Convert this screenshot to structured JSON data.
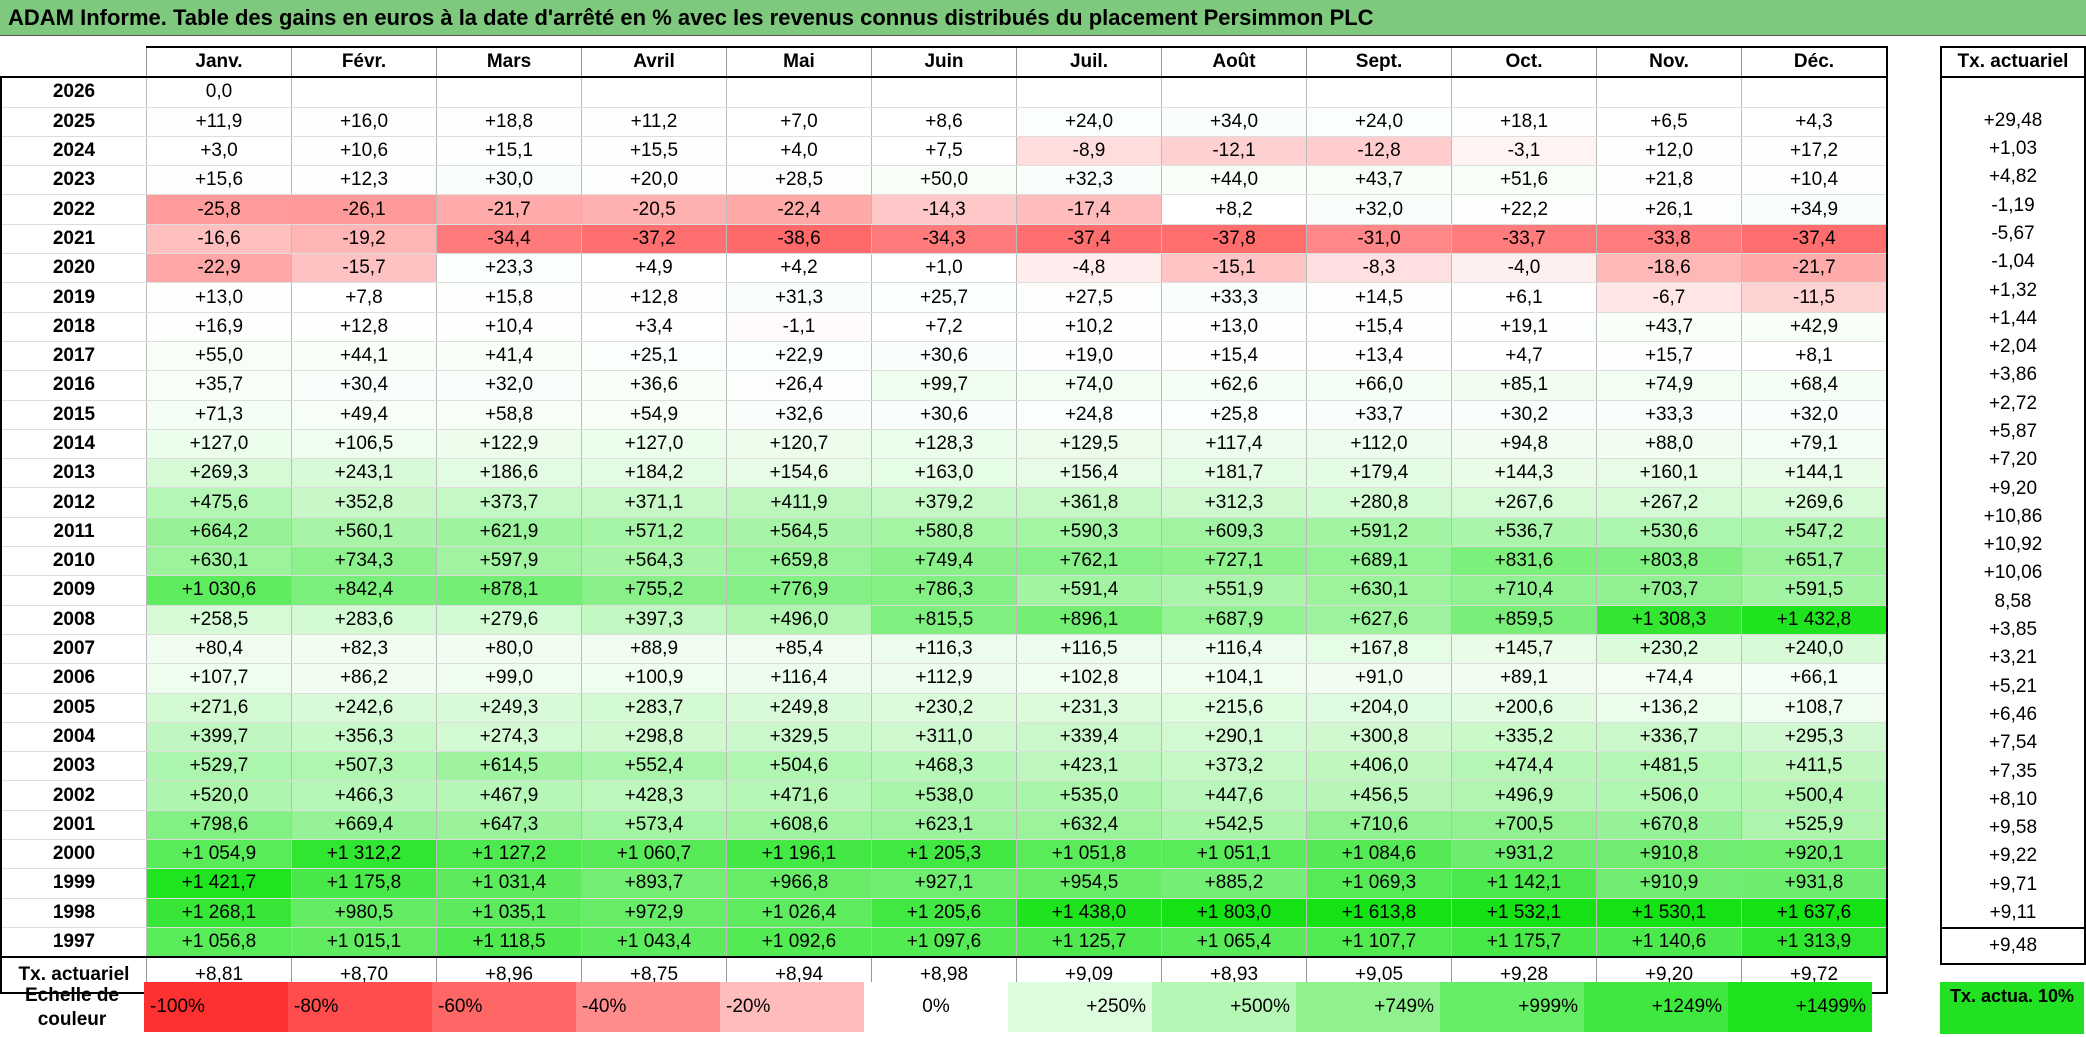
{
  "title": "ADAM Informe. Table des gains en euros à la date d'arrêté en % avec les revenus connus distribués du placement Persimmon PLC",
  "months": [
    "Janv.",
    "Févr.",
    "Mars",
    "Avril",
    "Mai",
    "Juin",
    "Juil.",
    "Août",
    "Sept.",
    "Oct.",
    "Nov.",
    "Déc."
  ],
  "side_header": "Tx. actuariel",
  "rows": [
    {
      "year": "2026",
      "values": [
        "0,0",
        "",
        "",
        "",
        "",
        "",
        "",
        "",
        "",
        "",
        "",
        ""
      ],
      "rate": ""
    },
    {
      "year": "2025",
      "values": [
        "+11,9",
        "+16,0",
        "+18,8",
        "+11,2",
        "+7,0",
        "+8,6",
        "+24,0",
        "+34,0",
        "+24,0",
        "+18,1",
        "+6,5",
        "+4,3"
      ],
      "rate": "+29,48"
    },
    {
      "year": "2024",
      "values": [
        "+3,0",
        "+10,6",
        "+15,1",
        "+15,5",
        "+4,0",
        "+7,5",
        "-8,9",
        "-12,1",
        "-12,8",
        "-3,1",
        "+12,0",
        "+17,2"
      ],
      "rate": "+1,03"
    },
    {
      "year": "2023",
      "values": [
        "+15,6",
        "+12,3",
        "+30,0",
        "+20,0",
        "+28,5",
        "+50,0",
        "+32,3",
        "+44,0",
        "+43,7",
        "+51,6",
        "+21,8",
        "+10,4"
      ],
      "rate": "+4,82"
    },
    {
      "year": "2022",
      "values": [
        "-25,8",
        "-26,1",
        "-21,7",
        "-20,5",
        "-22,4",
        "-14,3",
        "-17,4",
        "+8,2",
        "+32,0",
        "+22,2",
        "+26,1",
        "+34,9"
      ],
      "rate": "-1,19"
    },
    {
      "year": "2021",
      "values": [
        "-16,6",
        "-19,2",
        "-34,4",
        "-37,2",
        "-38,6",
        "-34,3",
        "-37,4",
        "-37,8",
        "-31,0",
        "-33,7",
        "-33,8",
        "-37,4"
      ],
      "rate": "-5,67"
    },
    {
      "year": "2020",
      "values": [
        "-22,9",
        "-15,7",
        "+23,3",
        "+4,9",
        "+4,2",
        "+1,0",
        "-4,8",
        "-15,1",
        "-8,3",
        "-4,0",
        "-18,6",
        "-21,7"
      ],
      "rate": "-1,04"
    },
    {
      "year": "2019",
      "values": [
        "+13,0",
        "+7,8",
        "+15,8",
        "+12,8",
        "+31,3",
        "+25,7",
        "+27,5",
        "+33,3",
        "+14,5",
        "+6,1",
        "-6,7",
        "-11,5"
      ],
      "rate": "+1,32"
    },
    {
      "year": "2018",
      "values": [
        "+16,9",
        "+12,8",
        "+10,4",
        "+3,4",
        "-1,1",
        "+7,2",
        "+10,2",
        "+13,0",
        "+15,4",
        "+19,1",
        "+43,7",
        "+42,9"
      ],
      "rate": "+1,44"
    },
    {
      "year": "2017",
      "values": [
        "+55,0",
        "+44,1",
        "+41,4",
        "+25,1",
        "+22,9",
        "+30,6",
        "+19,0",
        "+15,4",
        "+13,4",
        "+4,7",
        "+15,7",
        "+8,1"
      ],
      "rate": "+2,04"
    },
    {
      "year": "2016",
      "values": [
        "+35,7",
        "+30,4",
        "+32,0",
        "+36,6",
        "+26,4",
        "+99,7",
        "+74,0",
        "+62,6",
        "+66,0",
        "+85,1",
        "+74,9",
        "+68,4"
      ],
      "rate": "+3,86"
    },
    {
      "year": "2015",
      "values": [
        "+71,3",
        "+49,4",
        "+58,8",
        "+54,9",
        "+32,6",
        "+30,6",
        "+24,8",
        "+25,8",
        "+33,7",
        "+30,2",
        "+33,3",
        "+32,0"
      ],
      "rate": "+2,72"
    },
    {
      "year": "2014",
      "values": [
        "+127,0",
        "+106,5",
        "+122,9",
        "+127,0",
        "+120,7",
        "+128,3",
        "+129,5",
        "+117,4",
        "+112,0",
        "+94,8",
        "+88,0",
        "+79,1"
      ],
      "rate": "+5,87"
    },
    {
      "year": "2013",
      "values": [
        "+269,3",
        "+243,1",
        "+186,6",
        "+184,2",
        "+154,6",
        "+163,0",
        "+156,4",
        "+181,7",
        "+179,4",
        "+144,3",
        "+160,1",
        "+144,1"
      ],
      "rate": "+7,20"
    },
    {
      "year": "2012",
      "values": [
        "+475,6",
        "+352,8",
        "+373,7",
        "+371,1",
        "+411,9",
        "+379,2",
        "+361,8",
        "+312,3",
        "+280,8",
        "+267,6",
        "+267,2",
        "+269,6"
      ],
      "rate": "+9,20"
    },
    {
      "year": "2011",
      "values": [
        "+664,2",
        "+560,1",
        "+621,9",
        "+571,2",
        "+564,5",
        "+580,8",
        "+590,3",
        "+609,3",
        "+591,2",
        "+536,7",
        "+530,6",
        "+547,2"
      ],
      "rate": "+10,86"
    },
    {
      "year": "2010",
      "values": [
        "+630,1",
        "+734,3",
        "+597,9",
        "+564,3",
        "+659,8",
        "+749,4",
        "+762,1",
        "+727,1",
        "+689,1",
        "+831,6",
        "+803,8",
        "+651,7"
      ],
      "rate": "+10,92"
    },
    {
      "year": "2009",
      "values": [
        "+1 030,6",
        "+842,4",
        "+878,1",
        "+755,2",
        "+776,9",
        "+786,3",
        "+591,4",
        "+551,9",
        "+630,1",
        "+710,4",
        "+703,7",
        "+591,5"
      ],
      "rate": "+10,06"
    },
    {
      "year": "2008",
      "values": [
        "+258,5",
        "+283,6",
        "+279,6",
        "+397,3",
        "+496,0",
        "+815,5",
        "+896,1",
        "+687,9",
        "+627,6",
        "+859,5",
        "+1 308,3",
        "+1 432,8"
      ],
      "rate": "8,58"
    },
    {
      "year": "2007",
      "values": [
        "+80,4",
        "+82,3",
        "+80,0",
        "+88,9",
        "+85,4",
        "+116,3",
        "+116,5",
        "+116,4",
        "+167,8",
        "+145,7",
        "+230,2",
        "+240,0"
      ],
      "rate": "+3,85"
    },
    {
      "year": "2006",
      "values": [
        "+107,7",
        "+86,2",
        "+99,0",
        "+100,9",
        "+116,4",
        "+112,9",
        "+102,8",
        "+104,1",
        "+91,0",
        "+89,1",
        "+74,4",
        "+66,1"
      ],
      "rate": "+3,21"
    },
    {
      "year": "2005",
      "values": [
        "+271,6",
        "+242,6",
        "+249,3",
        "+283,7",
        "+249,8",
        "+230,2",
        "+231,3",
        "+215,6",
        "+204,0",
        "+200,6",
        "+136,2",
        "+108,7"
      ],
      "rate": "+5,21"
    },
    {
      "year": "2004",
      "values": [
        "+399,7",
        "+356,3",
        "+274,3",
        "+298,8",
        "+329,5",
        "+311,0",
        "+339,4",
        "+290,1",
        "+300,8",
        "+335,2",
        "+336,7",
        "+295,3"
      ],
      "rate": "+6,46"
    },
    {
      "year": "2003",
      "values": [
        "+529,7",
        "+507,3",
        "+614,5",
        "+552,4",
        "+504,6",
        "+468,3",
        "+423,1",
        "+373,2",
        "+406,0",
        "+474,4",
        "+481,5",
        "+411,5"
      ],
      "rate": "+7,54"
    },
    {
      "year": "2002",
      "values": [
        "+520,0",
        "+466,3",
        "+467,9",
        "+428,3",
        "+471,6",
        "+538,0",
        "+535,0",
        "+447,6",
        "+456,5",
        "+496,9",
        "+506,0",
        "+500,4"
      ],
      "rate": "+7,35"
    },
    {
      "year": "2001",
      "values": [
        "+798,6",
        "+669,4",
        "+647,3",
        "+573,4",
        "+608,6",
        "+623,1",
        "+632,4",
        "+542,5",
        "+710,6",
        "+700,5",
        "+670,8",
        "+525,9"
      ],
      "rate": "+8,10"
    },
    {
      "year": "2000",
      "values": [
        "+1 054,9",
        "+1 312,2",
        "+1 127,2",
        "+1 060,7",
        "+1 196,1",
        "+1 205,3",
        "+1 051,8",
        "+1 051,1",
        "+1 084,6",
        "+931,2",
        "+910,8",
        "+920,1"
      ],
      "rate": "+9,58"
    },
    {
      "year": "1999",
      "values": [
        "+1 421,7",
        "+1 175,8",
        "+1 031,4",
        "+893,7",
        "+966,8",
        "+927,1",
        "+954,5",
        "+885,2",
        "+1 069,3",
        "+1 142,1",
        "+910,9",
        "+931,8"
      ],
      "rate": "+9,22"
    },
    {
      "year": "1998",
      "values": [
        "+1 268,1",
        "+980,5",
        "+1 035,1",
        "+972,9",
        "+1 026,4",
        "+1 205,6",
        "+1 438,0",
        "+1 803,0",
        "+1 613,8",
        "+1 532,1",
        "+1 530,1",
        "+1 637,6"
      ],
      "rate": "+9,71"
    },
    {
      "year": "1997",
      "values": [
        "+1 056,8",
        "+1 015,1",
        "+1 118,5",
        "+1 043,4",
        "+1 092,6",
        "+1 097,6",
        "+1 125,7",
        "+1 065,4",
        "+1 107,7",
        "+1 175,7",
        "+1 140,6",
        "+1 313,9"
      ],
      "rate": "+9,11"
    }
  ],
  "total_row": {
    "label": "Tx. actuariel",
    "values": [
      "+8,81",
      "+8,70",
      "+8,96",
      "+8,75",
      "+8,94",
      "+8,98",
      "+9,09",
      "+8,93",
      "+9,05",
      "+9,28",
      "+9,20",
      "+9,72"
    ],
    "rate": "+9,48"
  },
  "legend": {
    "label": "Echelle de couleur",
    "items": [
      {
        "text": "-100%",
        "color": "#ff3030",
        "kind": "neg"
      },
      {
        "text": "-80%",
        "color": "#ff4c4c",
        "kind": "neg"
      },
      {
        "text": "-60%",
        "color": "#ff6666",
        "kind": "neg"
      },
      {
        "text": "-40%",
        "color": "#ff8c8c",
        "kind": "neg"
      },
      {
        "text": "-20%",
        "color": "#ffbcbc",
        "kind": "neg"
      },
      {
        "text": "0%",
        "color": "#ffffff",
        "kind": "zero"
      },
      {
        "text": "+250%",
        "color": "#ddfbdd",
        "kind": "pos"
      },
      {
        "text": "+500%",
        "color": "#b6f7b6",
        "kind": "pos"
      },
      {
        "text": "+749%",
        "color": "#8ff28f",
        "kind": "pos"
      },
      {
        "text": "+999%",
        "color": "#66ee66",
        "kind": "pos"
      },
      {
        "text": "+1249%",
        "color": "#3fe83f",
        "kind": "pos"
      },
      {
        "text": "+1499%",
        "color": "#1ee21e",
        "kind": "pos"
      }
    ],
    "target": "Tx. actua. 10%"
  }
}
